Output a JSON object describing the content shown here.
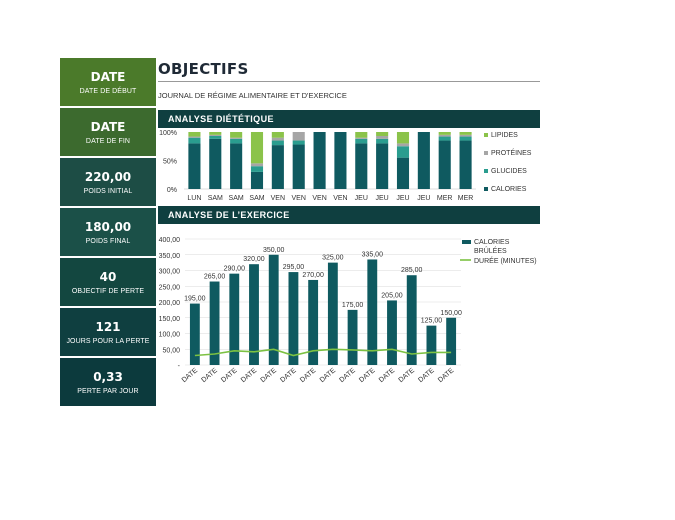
{
  "sidebar": [
    {
      "value": "DATE",
      "label": "DATE DE DÉBUT"
    },
    {
      "value": "DATE",
      "label": "DATE DE FIN"
    },
    {
      "value": "220,00",
      "label": "POIDS INITIAL"
    },
    {
      "value": "180,00",
      "label": "POIDS FINAL"
    },
    {
      "value": "40",
      "label": "OBJECTIF DE PERTE"
    },
    {
      "value": "121",
      "label": "JOURS POUR LA PERTE"
    },
    {
      "value": "0,33",
      "label": "PERTE PAR JOUR"
    }
  ],
  "header": {
    "title": "OBJECTIFS",
    "subtitle": "JOURNAL DE RÉGIME ALIMENTAIRE ET D'EXERCICE"
  },
  "sections": {
    "diet": "ANALYSE DIÉTÉTIQUE",
    "exercise": "ANALYSE DE L’EXERCICE"
  },
  "colors": {
    "lipides": "#8bc34a",
    "proteines": "#a6a6a6",
    "glucides": "#2a9d8f",
    "calories": "#0f5a60",
    "duree": "#7cc142"
  },
  "chart_data": [
    {
      "type": "bar",
      "stacked": true,
      "percent": true,
      "categories": [
        "LUN",
        "SAM",
        "SAM",
        "SAM",
        "VEN",
        "VEN",
        "VEN",
        "VEN",
        "JEU",
        "JEU",
        "JEU",
        "JEU",
        "MER",
        "MER"
      ],
      "y_ticks": [
        "100%",
        "50%",
        "0%"
      ],
      "ylim": [
        0,
        100
      ],
      "series": [
        {
          "name": "CALORIES",
          "values": [
            80,
            88,
            80,
            30,
            77,
            78,
            100,
            100,
            80,
            80,
            55,
            100,
            85,
            85
          ]
        },
        {
          "name": "GLUCIDES",
          "values": [
            10,
            5,
            8,
            10,
            8,
            7,
            0,
            0,
            8,
            8,
            20,
            0,
            7,
            7
          ]
        },
        {
          "name": "PROTÉINES",
          "values": [
            2,
            2,
            2,
            5,
            5,
            15,
            0,
            0,
            2,
            5,
            5,
            0,
            3,
            3
          ]
        },
        {
          "name": "LIPIDES",
          "values": [
            8,
            5,
            10,
            55,
            10,
            0,
            0,
            0,
            10,
            7,
            20,
            0,
            5,
            5
          ]
        }
      ],
      "legend": "right"
    },
    {
      "type": "bar",
      "categories": [
        "DATE",
        "DATE",
        "DATE",
        "DATE",
        "DATE",
        "DATE",
        "DATE",
        "DATE",
        "DATE",
        "DATE",
        "DATE",
        "DATE",
        "DATE",
        "DATE"
      ],
      "y_ticks": [
        "400,00",
        "350,00",
        "300,00",
        "250,00",
        "200,00",
        "150,00",
        "100,00",
        "50,00",
        "-"
      ],
      "ylim": [
        0,
        400
      ],
      "series": [
        {
          "name": "CALORIES BRÛLÉES",
          "values": [
            195,
            265,
            290,
            320,
            350,
            295,
            270,
            325,
            175,
            335,
            205,
            285,
            125,
            150
          ],
          "labels": [
            "195,00",
            "265,00",
            "290,00",
            "320,00",
            "350,00",
            "295,00",
            "270,00",
            "325,00",
            "175,00",
            "335,00",
            "205,00",
            "285,00",
            "125,00",
            "150,00"
          ]
        },
        {
          "name": "DURÉE (MINUTES)",
          "type": "line",
          "values": [
            30,
            35,
            45,
            42,
            50,
            30,
            45,
            50,
            48,
            45,
            50,
            35,
            40,
            40
          ]
        }
      ],
      "legend_lines": [
        "CALORIES",
        "BRÛLÉES",
        "DURÉE (MINUTES)"
      ],
      "legend": "right",
      "grid": true
    }
  ]
}
